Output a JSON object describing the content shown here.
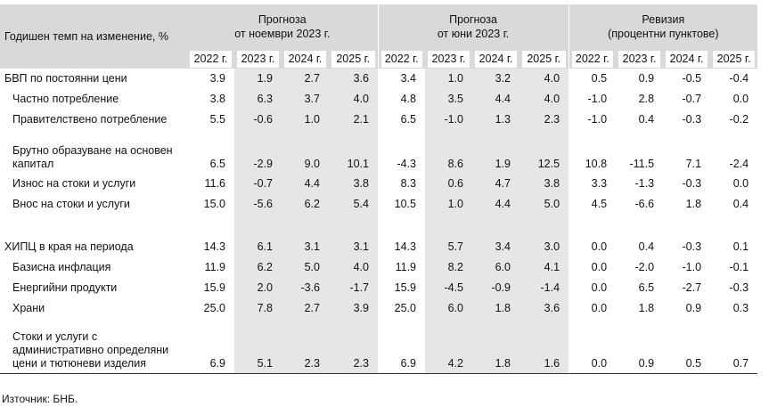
{
  "header": {
    "first_col": "Годишен темп на изменение, %",
    "groups": [
      {
        "line1": "Прогноза",
        "line2": "от ноември 2023 г."
      },
      {
        "line1": "Прогноза",
        "line2": "от юни 2023 г."
      },
      {
        "line1": "Ревизия",
        "line2": "(процентни пунктове)"
      }
    ],
    "years": [
      "2022 г.",
      "2023 г.",
      "2024 г.",
      "2025 г."
    ]
  },
  "rows": [
    {
      "label": "БВП по постоянни цени",
      "nov": [
        "3.9",
        "1.9",
        "2.7",
        "3.6"
      ],
      "jun": [
        "3.4",
        "1.0",
        "3.2",
        "4.0"
      ],
      "rev": [
        "0.5",
        "0.9",
        "-0.5",
        "-0.4"
      ]
    },
    {
      "label": "Частно потребление",
      "nov": [
        "3.8",
        "6.3",
        "3.7",
        "4.0"
      ],
      "jun": [
        "4.8",
        "3.5",
        "4.4",
        "4.0"
      ],
      "rev": [
        "-1.0",
        "2.8",
        "-0.7",
        "0.0"
      ]
    },
    {
      "label": "Правителствено потребление",
      "nov": [
        "5.5",
        "-0.6",
        "1.0",
        "2.1"
      ],
      "jun": [
        "6.5",
        "-1.0",
        "1.3",
        "2.3"
      ],
      "rev": [
        "-1.0",
        "0.4",
        "-0.3",
        "-0.2"
      ]
    },
    {
      "label_lines": [
        "Брутно образуване на основен",
        "капитал"
      ],
      "nov": [
        "6.5",
        "-2.9",
        "9.0",
        "10.1"
      ],
      "jun": [
        "-4.3",
        "8.6",
        "1.9",
        "12.5"
      ],
      "rev": [
        "10.8",
        "-11.5",
        "7.1",
        "-2.4"
      ]
    },
    {
      "label": "Износ на стоки и услуги",
      "nov": [
        "11.6",
        "-0.7",
        "4.4",
        "3.8"
      ],
      "jun": [
        "8.3",
        "0.6",
        "4.7",
        "3.8"
      ],
      "rev": [
        "3.3",
        "-1.3",
        "-0.3",
        "0.0"
      ]
    },
    {
      "label": "Внос на стоки и услуги",
      "nov": [
        "15.0",
        "-5.6",
        "6.2",
        "5.4"
      ],
      "jun": [
        "10.5",
        "1.0",
        "4.4",
        "5.0"
      ],
      "rev": [
        "4.5",
        "-6.6",
        "1.8",
        "0.4"
      ]
    },
    {
      "label": "ХИПЦ в края на периода",
      "nov": [
        "14.3",
        "6.1",
        "3.1",
        "3.1"
      ],
      "jun": [
        "14.3",
        "5.7",
        "3.4",
        "3.0"
      ],
      "rev": [
        "0.0",
        "0.4",
        "-0.3",
        "0.1"
      ]
    },
    {
      "label": "Базисна инфлация",
      "nov": [
        "11.9",
        "6.2",
        "5.0",
        "4.0"
      ],
      "jun": [
        "11.9",
        "8.2",
        "6.0",
        "4.1"
      ],
      "rev": [
        "0.0",
        "-2.0",
        "-1.0",
        "-0.1"
      ]
    },
    {
      "label": "Енергийни продукти",
      "nov": [
        "15.9",
        "2.0",
        "-3.6",
        "-1.7"
      ],
      "jun": [
        "15.9",
        "-4.5",
        "-0.9",
        "-1.4"
      ],
      "rev": [
        "0.0",
        "6.5",
        "-2.7",
        "-0.3"
      ]
    },
    {
      "label": "Храни",
      "nov": [
        "25.0",
        "7.8",
        "2.7",
        "3.9"
      ],
      "jun": [
        "25.0",
        "6.0",
        "1.8",
        "3.6"
      ],
      "rev": [
        "0.0",
        "1.8",
        "0.9",
        "0.3"
      ]
    },
    {
      "label_lines": [
        "Стоки и услуги с",
        "административно определяни",
        "цени и тютюневи изделия"
      ],
      "nov": [
        "6.9",
        "5.1",
        "2.3",
        "2.3"
      ],
      "jun": [
        "6.9",
        "4.2",
        "1.8",
        "1.6"
      ],
      "rev": [
        "0.0",
        "0.9",
        "0.5",
        "0.7"
      ]
    }
  ],
  "source": "Източник: БНБ."
}
